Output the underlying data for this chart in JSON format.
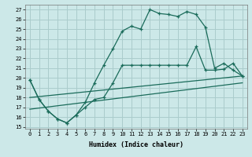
{
  "xlabel": "Humidex (Indice chaleur)",
  "bg_color": "#cce8e8",
  "grid_color": "#aacccc",
  "line_color": "#1a6b5a",
  "xlim": [
    -0.5,
    23.5
  ],
  "ylim": [
    14.8,
    27.5
  ],
  "xticks": [
    0,
    1,
    2,
    3,
    4,
    5,
    6,
    7,
    8,
    9,
    10,
    11,
    12,
    13,
    14,
    15,
    16,
    17,
    18,
    19,
    20,
    21,
    22,
    23
  ],
  "yticks": [
    15,
    16,
    17,
    18,
    19,
    20,
    21,
    22,
    23,
    24,
    25,
    26,
    27
  ],
  "series_upper_x": [
    0,
    1,
    2,
    3,
    4,
    5,
    6,
    7,
    8,
    9,
    10,
    11,
    12,
    13,
    14,
    15,
    16,
    17,
    18,
    19,
    20,
    21,
    22,
    23
  ],
  "series_upper_y": [
    19.8,
    17.8,
    16.6,
    15.8,
    15.4,
    16.2,
    17.5,
    19.5,
    21.3,
    23.0,
    24.8,
    25.3,
    25.0,
    27.0,
    26.6,
    26.5,
    26.3,
    26.8,
    26.5,
    25.2,
    21.0,
    21.5,
    20.8,
    20.2
  ],
  "series_mid_x": [
    0,
    1,
    2,
    3,
    4,
    5,
    6,
    7,
    8,
    9,
    10,
    11,
    12,
    13,
    14,
    15,
    16,
    17,
    18,
    19,
    20,
    21,
    22,
    23
  ],
  "series_mid_y": [
    19.8,
    17.8,
    16.6,
    15.8,
    15.4,
    16.2,
    17.0,
    17.8,
    18.0,
    19.5,
    21.3,
    21.3,
    21.3,
    21.3,
    21.3,
    21.3,
    21.3,
    21.3,
    23.2,
    20.8,
    20.8,
    20.9,
    21.5,
    20.2
  ],
  "series_line1_x": [
    0,
    23
  ],
  "series_line1_y": [
    18.0,
    20.2
  ],
  "series_line2_x": [
    0,
    23
  ],
  "series_line2_y": [
    16.8,
    19.5
  ]
}
